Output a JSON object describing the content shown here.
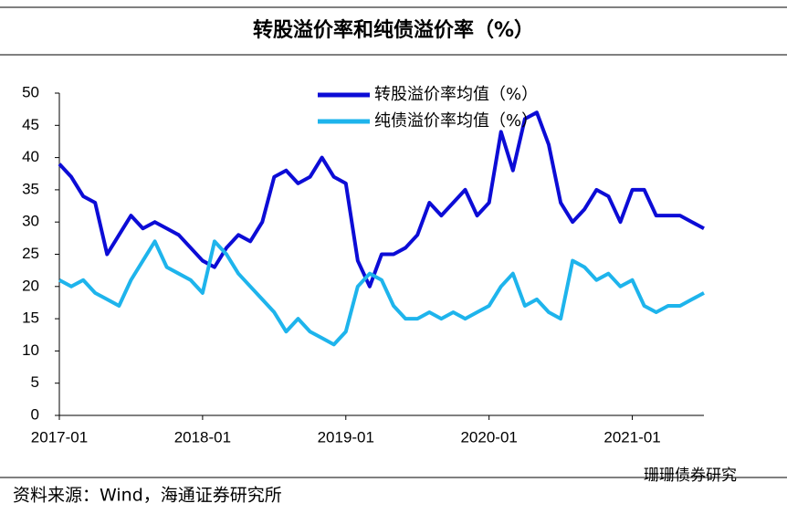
{
  "chart_data": {
    "type": "line",
    "title": "转股溢价率和纯债溢价率（%）",
    "source": "资料来源：Wind，海通证券研究所",
    "watermark": "珊珊债券研究",
    "x": [
      "2017-01",
      "2017-02",
      "2017-03",
      "2017-04",
      "2017-05",
      "2017-06",
      "2017-07",
      "2017-08",
      "2017-09",
      "2017-10",
      "2017-11",
      "2017-12",
      "2018-01",
      "2018-02",
      "2018-03",
      "2018-04",
      "2018-05",
      "2018-06",
      "2018-07",
      "2018-08",
      "2018-09",
      "2018-10",
      "2018-11",
      "2018-12",
      "2019-01",
      "2019-02",
      "2019-03",
      "2019-04",
      "2019-05",
      "2019-06",
      "2019-07",
      "2019-08",
      "2019-09",
      "2019-10",
      "2019-11",
      "2019-12",
      "2020-01",
      "2020-02",
      "2020-03",
      "2020-04",
      "2020-05",
      "2020-06",
      "2020-07",
      "2020-08",
      "2020-09",
      "2020-10",
      "2020-11",
      "2020-12",
      "2021-01",
      "2021-02",
      "2021-03",
      "2021-04",
      "2021-05",
      "2021-06",
      "2021-07"
    ],
    "series": [
      {
        "name": "转股溢价率均值（%）",
        "color": "#0c0cd6",
        "values": [
          39,
          37,
          34,
          33,
          25,
          28,
          31,
          29,
          30,
          29,
          28,
          26,
          24,
          23,
          26,
          28,
          27,
          30,
          37,
          38,
          36,
          37,
          40,
          37,
          36,
          24,
          20,
          25,
          25,
          26,
          28,
          33,
          31,
          33,
          35,
          31,
          33,
          44,
          38,
          46,
          47,
          42,
          33,
          30,
          32,
          35,
          34,
          30,
          35,
          35,
          31,
          31,
          31,
          30,
          29
        ]
      },
      {
        "name": "纯债溢价率均值（%）",
        "color": "#1eb4ec",
        "values": [
          21,
          20,
          21,
          19,
          18,
          17,
          21,
          24,
          27,
          23,
          22,
          21,
          19,
          27,
          25,
          22,
          20,
          18,
          16,
          13,
          15,
          13,
          12,
          11,
          13,
          20,
          22,
          21,
          17,
          15,
          15,
          16,
          15,
          16,
          15,
          16,
          17,
          20,
          22,
          17,
          18,
          16,
          15,
          24,
          23,
          21,
          22,
          20,
          21,
          17,
          16,
          17,
          17,
          18,
          19
        ]
      }
    ],
    "xlim": [
      "2017-01",
      "2021-07"
    ],
    "xticks": [
      "2017-01",
      "2018-01",
      "2019-01",
      "2020-01",
      "2021-01"
    ],
    "ylim": [
      0,
      50
    ],
    "yticks": [
      0,
      5,
      10,
      15,
      20,
      25,
      30,
      35,
      40,
      45,
      50
    ]
  }
}
